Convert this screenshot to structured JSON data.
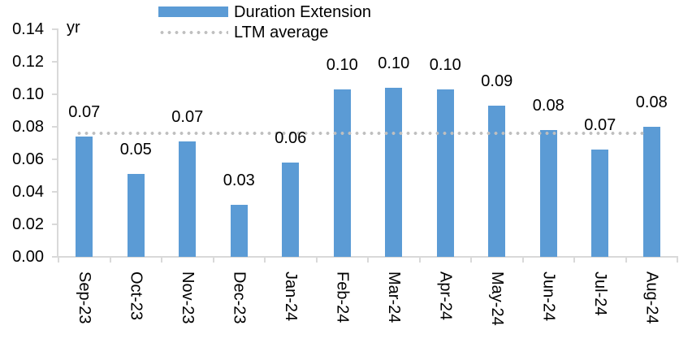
{
  "chart_data": {
    "type": "bar",
    "title": "",
    "unit_label": "yr",
    "categories": [
      "Sep-23",
      "Oct-23",
      "Nov-23",
      "Dec-23",
      "Jan-24",
      "Feb-24",
      "Mar-24",
      "Apr-24",
      "May-24",
      "Jun-24",
      "Jul-24",
      "Aug-24"
    ],
    "series": [
      {
        "name": "Duration Extension",
        "values": [
          0.074,
          0.051,
          0.071,
          0.032,
          0.058,
          0.103,
          0.104,
          0.103,
          0.093,
          0.078,
          0.066,
          0.08
        ],
        "data_labels": [
          "0.07",
          "0.05",
          "0.07",
          "0.03",
          "0.06",
          "0.10",
          "0.10",
          "0.10",
          "0.09",
          "0.08",
          "0.07",
          "0.08"
        ]
      }
    ],
    "reference_line": {
      "name": "LTM average",
      "value": 0.076,
      "style": "dotted"
    },
    "ylim": [
      0,
      0.14
    ],
    "ytick_step": 0.02,
    "ytick_labels": [
      "0.00",
      "0.02",
      "0.04",
      "0.06",
      "0.08",
      "0.10",
      "0.12",
      "0.14"
    ],
    "grid": "off",
    "legend_position": "top-center",
    "legend": [
      {
        "label": "Duration Extension",
        "swatch": "bar"
      },
      {
        "label": "LTM average",
        "swatch": "dotted-line"
      }
    ],
    "colors": {
      "bar": "#5B9BD5",
      "reference_dots": "#BFBFBF",
      "axis": "#D9D9D9",
      "text": "#000000"
    }
  }
}
